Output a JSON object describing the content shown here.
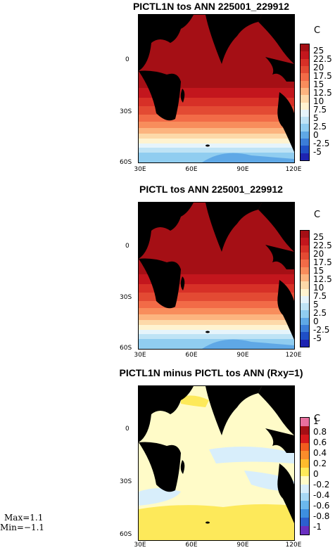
{
  "panels": [
    {
      "title": "PICTL1N tos ANN 225001_229912",
      "unit": "C",
      "lat_labels": [
        "0",
        "30S",
        "60S"
      ],
      "lon_labels": [
        "30E",
        "60E",
        "90E",
        "120E"
      ],
      "colorbar_labels": [
        "25",
        "22.5",
        "20",
        "17.5",
        "15",
        "12.5",
        "10",
        "7.5",
        "5",
        "2.5",
        "0",
        "-2.5",
        "-5"
      ],
      "colorbar_colors": [
        "#a50f15",
        "#c3161d",
        "#d73027",
        "#e34a33",
        "#f26b47",
        "#f88d5c",
        "#fcb47f",
        "#fdd9a9",
        "#fff3d0",
        "#e6f4fb",
        "#bfe3f5",
        "#90cdf0",
        "#5fa8e6",
        "#3b7dd8",
        "#1f4fc6",
        "#1e24b2"
      ]
    },
    {
      "title": "PICTL tos ANN 225001_229912",
      "unit": "C",
      "lat_labels": [
        "0",
        "30S",
        "60S"
      ],
      "lon_labels": [
        "30E",
        "60E",
        "90E",
        "120E"
      ],
      "colorbar_labels": [
        "25",
        "22.5",
        "20",
        "17.5",
        "15",
        "12.5",
        "10",
        "7.5",
        "5",
        "2.5",
        "0",
        "-2.5",
        "-5"
      ],
      "colorbar_colors": [
        "#a50f15",
        "#c3161d",
        "#d73027",
        "#e34a33",
        "#f26b47",
        "#f88d5c",
        "#fcb47f",
        "#fdd9a9",
        "#fff3d0",
        "#e6f4fb",
        "#bfe3f5",
        "#90cdf0",
        "#5fa8e6",
        "#3b7dd8",
        "#1f4fc6",
        "#1e24b2"
      ]
    },
    {
      "title": "PICTL1N minus PICTL tos ANN (Rxy=1)",
      "unit": "C",
      "lat_labels": [
        "0",
        "30S",
        "60S"
      ],
      "lon_labels": [
        "30E",
        "60E",
        "90E",
        "120E"
      ],
      "colorbar_labels": [
        "1",
        "0.8",
        "0.6",
        "0.4",
        "0.2",
        "0",
        "-0.2",
        "-0.4",
        "-0.6",
        "-0.8",
        "-1"
      ],
      "colorbar_colors": [
        "#e8709e",
        "#a50f15",
        "#d7191c",
        "#f25c1e",
        "#fb8c2b",
        "#fdbb2d",
        "#fde95a",
        "#fffbc8",
        "#d8eefb",
        "#a7d8f5",
        "#6bb8ee",
        "#3d8fe0",
        "#2c5fcf",
        "#6a2fc0"
      ]
    }
  ],
  "stats": {
    "max": "Max=1.1",
    "min": "Min=−1.1"
  }
}
